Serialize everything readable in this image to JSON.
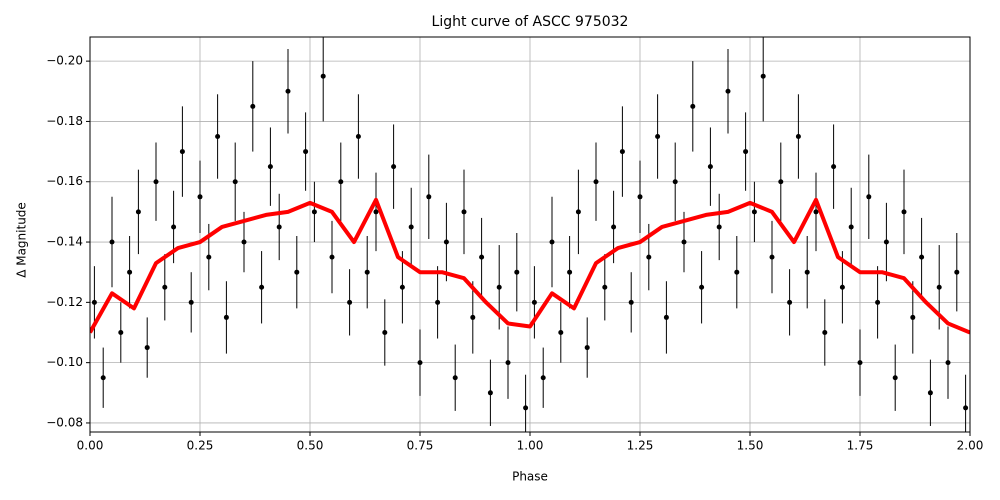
{
  "chart_data": {
    "type": "scatter",
    "title": "Light curve of ASCC 975032",
    "x_label": "Phase",
    "y_label": "Δ Magnitude",
    "xlim": [
      0,
      2
    ],
    "ylim": [
      -0.077,
      -0.208
    ],
    "xticks": [
      {
        "value": 0,
        "label": "0.00"
      },
      {
        "value": 0.25,
        "label": "0.25"
      },
      {
        "value": 0.5,
        "label": "0.50"
      },
      {
        "value": 0.75,
        "label": "0.75"
      },
      {
        "value": 1,
        "label": "1.00"
      },
      {
        "value": 1.25,
        "label": "1.25"
      },
      {
        "value": 1.5,
        "label": "1.50"
      },
      {
        "value": 1.75,
        "label": "1.75"
      },
      {
        "value": 2,
        "label": "2.00"
      }
    ],
    "yticks": [
      {
        "value": -0.2,
        "label": "−0.20"
      },
      {
        "value": -0.18,
        "label": "−0.18"
      },
      {
        "value": -0.16,
        "label": "−0.16"
      },
      {
        "value": -0.14,
        "label": "−0.14"
      },
      {
        "value": -0.12,
        "label": "−0.12"
      },
      {
        "value": -0.1,
        "label": "−0.10"
      },
      {
        "value": -0.08,
        "label": "−0.08"
      }
    ],
    "grid": true,
    "points": {
      "color": "#000000",
      "x": [
        0.01,
        0.03,
        0.05,
        0.07,
        0.09,
        0.11,
        0.13,
        0.15,
        0.17,
        0.19,
        0.21,
        0.23,
        0.25,
        0.27,
        0.29,
        0.31,
        0.33,
        0.35,
        0.37,
        0.39,
        0.41,
        0.43,
        0.45,
        0.47,
        0.49,
        0.51,
        0.53,
        0.55,
        0.57,
        0.59,
        0.61,
        0.63,
        0.65,
        0.67,
        0.69,
        0.71,
        0.73,
        0.75,
        0.77,
        0.79,
        0.81,
        0.83,
        0.85,
        0.87,
        0.89,
        0.91,
        0.93,
        0.95,
        0.97,
        0.99,
        1.01,
        1.03,
        1.05,
        1.07,
        1.09,
        1.11,
        1.13,
        1.15,
        1.17,
        1.19,
        1.21,
        1.23,
        1.25,
        1.27,
        1.29,
        1.31,
        1.33,
        1.35,
        1.37,
        1.39,
        1.41,
        1.43,
        1.45,
        1.47,
        1.49,
        1.51,
        1.53,
        1.55,
        1.57,
        1.59,
        1.61,
        1.63,
        1.65,
        1.67,
        1.69,
        1.71,
        1.73,
        1.75,
        1.77,
        1.79,
        1.81,
        1.83,
        1.85,
        1.87,
        1.89,
        1.91,
        1.93,
        1.95,
        1.97,
        1.99
      ],
      "values": [
        -0.12,
        -0.095,
        -0.14,
        -0.11,
        -0.13,
        -0.15,
        -0.105,
        -0.16,
        -0.125,
        -0.145,
        -0.17,
        -0.12,
        -0.155,
        -0.135,
        -0.175,
        -0.115,
        -0.16,
        -0.14,
        -0.185,
        -0.125,
        -0.165,
        -0.145,
        -0.19,
        -0.13,
        -0.17,
        -0.15,
        -0.195,
        -0.135,
        -0.16,
        -0.12,
        -0.175,
        -0.13,
        -0.15,
        -0.11,
        -0.165,
        -0.125,
        -0.145,
        -0.1,
        -0.155,
        -0.12,
        -0.14,
        -0.095,
        -0.15,
        -0.115,
        -0.135,
        -0.09,
        -0.125,
        -0.1,
        -0.13,
        -0.085,
        -0.12,
        -0.095,
        -0.14,
        -0.11,
        -0.13,
        -0.15,
        -0.105,
        -0.16,
        -0.125,
        -0.145,
        -0.17,
        -0.12,
        -0.155,
        -0.135,
        -0.175,
        -0.115,
        -0.16,
        -0.14,
        -0.185,
        -0.125,
        -0.165,
        -0.145,
        -0.19,
        -0.13,
        -0.17,
        -0.15,
        -0.195,
        -0.135,
        -0.16,
        -0.12,
        -0.175,
        -0.13,
        -0.15,
        -0.11,
        -0.165,
        -0.125,
        -0.145,
        -0.1,
        -0.155,
        -0.12,
        -0.14,
        -0.095,
        -0.15,
        -0.115,
        -0.135,
        -0.09,
        -0.125,
        -0.1,
        -0.13,
        -0.085
      ],
      "errors": [
        0.012,
        0.01,
        0.015,
        0.01,
        0.012,
        0.014,
        0.01,
        0.013,
        0.011,
        0.012,
        0.015,
        0.01,
        0.012,
        0.011,
        0.014,
        0.012,
        0.013,
        0.01,
        0.015,
        0.012,
        0.013,
        0.011,
        0.014,
        0.012,
        0.013,
        0.01,
        0.015,
        0.012,
        0.013,
        0.011,
        0.014,
        0.012,
        0.013,
        0.011,
        0.014,
        0.012,
        0.013,
        0.011,
        0.014,
        0.012,
        0.013,
        0.011,
        0.014,
        0.012,
        0.013,
        0.011,
        0.014,
        0.012,
        0.013,
        0.011,
        0.012,
        0.01,
        0.015,
        0.01,
        0.012,
        0.014,
        0.01,
        0.013,
        0.011,
        0.012,
        0.015,
        0.01,
        0.012,
        0.011,
        0.014,
        0.012,
        0.013,
        0.01,
        0.015,
        0.012,
        0.013,
        0.011,
        0.014,
        0.012,
        0.013,
        0.01,
        0.015,
        0.012,
        0.013,
        0.011,
        0.014,
        0.012,
        0.013,
        0.011,
        0.014,
        0.012,
        0.013,
        0.011,
        0.014,
        0.012,
        0.013,
        0.011,
        0.014,
        0.012,
        0.013,
        0.011,
        0.014,
        0.012,
        0.013,
        0.011
      ]
    },
    "model": {
      "color": "#ff0000",
      "x": [
        0,
        0.05,
        0.1,
        0.15,
        0.2,
        0.25,
        0.3,
        0.35,
        0.4,
        0.45,
        0.5,
        0.55,
        0.6,
        0.65,
        0.7,
        0.75,
        0.8,
        0.85,
        0.9,
        0.95,
        1,
        1.05,
        1.1,
        1.15,
        1.2,
        1.25,
        1.3,
        1.35,
        1.4,
        1.45,
        1.5,
        1.55,
        1.6,
        1.65,
        1.7,
        1.75,
        1.8,
        1.85,
        1.9,
        1.95,
        2
      ],
      "values": [
        -0.11,
        -0.123,
        -0.118,
        -0.133,
        -0.138,
        -0.14,
        -0.145,
        -0.147,
        -0.149,
        -0.15,
        -0.153,
        -0.15,
        -0.14,
        -0.154,
        -0.135,
        -0.13,
        -0.13,
        -0.128,
        -0.12,
        -0.113,
        -0.112,
        -0.123,
        -0.118,
        -0.133,
        -0.138,
        -0.14,
        -0.145,
        -0.147,
        -0.149,
        -0.15,
        -0.153,
        -0.15,
        -0.14,
        -0.154,
        -0.135,
        -0.13,
        -0.13,
        -0.128,
        -0.12,
        -0.113,
        -0.11
      ]
    }
  }
}
